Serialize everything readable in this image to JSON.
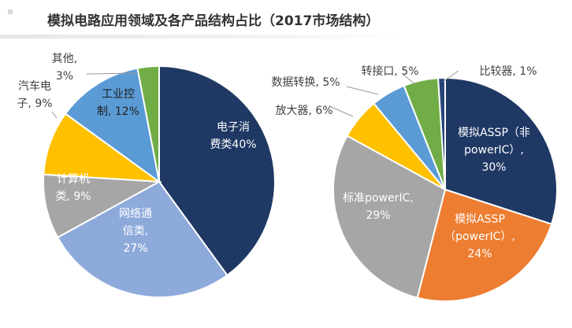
{
  "title": "模拟电路应用领域及各产品结构占比（2017市场结构）",
  "chart_data": [
    {
      "type": "pie",
      "name": "",
      "slices": [
        {
          "label_lines": [
            "电子消",
            "费类40%"
          ],
          "value": 40,
          "color": "#1f3864",
          "label_color": "#ffffff",
          "label_pos": "inside"
        },
        {
          "label_lines": [
            "网络通",
            "信类,",
            "27%"
          ],
          "value": 27,
          "color": "#8eaadb",
          "label_color": "#ffffff",
          "label_pos": "inside"
        },
        {
          "label_lines": [
            "计算机",
            "类, 9%"
          ],
          "value": 9,
          "color": "#a6a6a6",
          "label_color": "#ffffff",
          "label_pos": "inside"
        },
        {
          "label_lines": [
            "汽车电",
            "子, 9%"
          ],
          "value": 9,
          "color": "#ffc000",
          "label_color": "#404040",
          "label_pos": "outside"
        },
        {
          "label_lines": [
            "工业控",
            "制, 12%"
          ],
          "value": 12,
          "color": "#5b9bd5",
          "label_color": "#1f1f1f",
          "label_pos": "inside"
        },
        {
          "label_lines": [
            "其他,",
            "3%"
          ],
          "value": 3,
          "color": "#70ad47",
          "label_color": "#404040",
          "label_pos": "outside"
        }
      ]
    },
    {
      "type": "pie",
      "name": "",
      "slices": [
        {
          "label_lines": [
            "模拟ASSP（非",
            "powerIC）,",
            "30%"
          ],
          "value": 30,
          "color": "#1f3864",
          "label_color": "#ffffff",
          "label_pos": "inside"
        },
        {
          "label_lines": [
            "模拟ASSP",
            "（powerIC）,",
            "24%"
          ],
          "value": 24,
          "color": "#ed7d31",
          "label_color": "#ffffff",
          "label_pos": "inside"
        },
        {
          "label_lines": [
            "标准powerIC,",
            "29%"
          ],
          "value": 29,
          "color": "#a6a6a6",
          "label_color": "#ffffff",
          "label_pos": "inside"
        },
        {
          "label_lines": [
            "放大器, 6%"
          ],
          "value": 6,
          "color": "#ffc000",
          "label_color": "#404040",
          "label_pos": "outside"
        },
        {
          "label_lines": [
            "数据转换, 5%"
          ],
          "value": 5,
          "color": "#5b9bd5",
          "label_color": "#404040",
          "label_pos": "outside"
        },
        {
          "label_lines": [
            "转接口, 5%"
          ],
          "value": 5,
          "color": "#70ad47",
          "label_color": "#404040",
          "label_pos": "outside"
        },
        {
          "label_lines": [
            "比较器, 1%"
          ],
          "value": 1,
          "color": "#264478",
          "label_color": "#404040",
          "label_pos": "outside"
        }
      ]
    }
  ]
}
